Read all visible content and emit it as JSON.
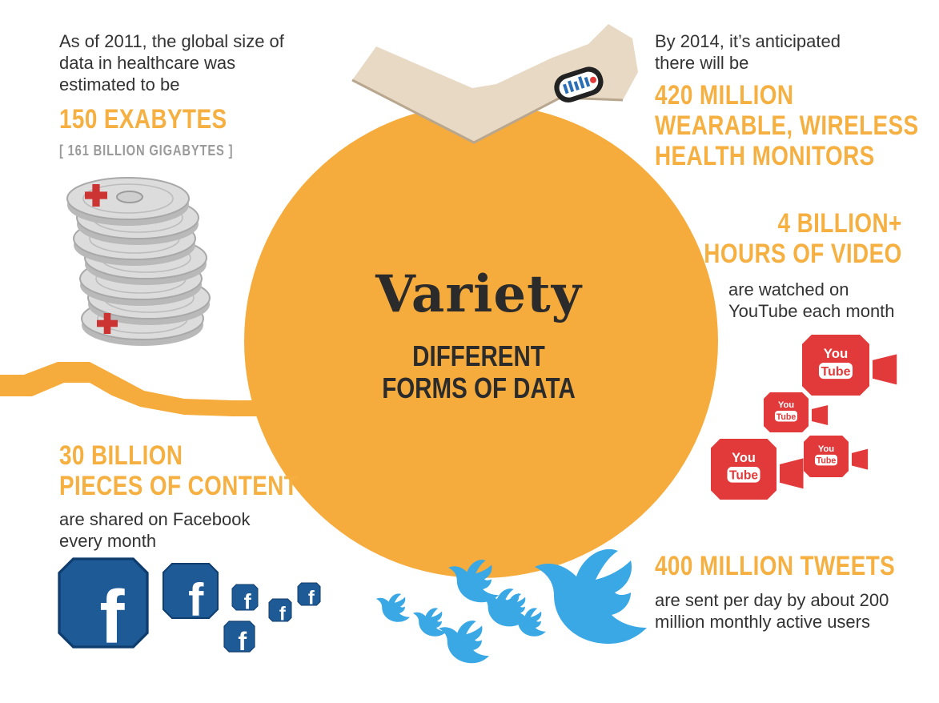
{
  "colors": {
    "accent_orange": "#f5b041",
    "circle": "#f6ac3d",
    "text_dark": "#2b2b2b",
    "text_gray": "#9a9a9a",
    "youtube_red": "#e23a3a",
    "facebook_blue": "#1e5a96",
    "twitter_blue": "#3aa8e4",
    "arm_skin": "#e8d9c4",
    "disc_gray": "#dcdcdc",
    "cross_red": "#cc3333"
  },
  "center": {
    "title": "Variety",
    "subtitle_line1": "DIFFERENT",
    "subtitle_line2": "FORMS OF DATA"
  },
  "healthcare": {
    "intro_line1": "As of 2011, the global size of",
    "intro_line2": "data in healthcare was",
    "intro_line3": "estimated to be",
    "headline": "150 EXABYTES",
    "note": "[ 161 BILLION GIGABYTES ]",
    "icon": "medical-disc-stack-icon"
  },
  "wearables": {
    "intro_line1": "By 2014, it’s anticipated",
    "intro_line2": "there will be",
    "headline_line1": "420 MILLION",
    "headline_line2": "WEARABLE, WIRELESS",
    "headline_line3": "HEALTH MONITORS",
    "icon": "arm-with-wearable-monitor-icon"
  },
  "youtube": {
    "headline_line1": "4 BILLION+",
    "headline_line2": "HOURS OF VIDEO",
    "body_line1": "are watched on",
    "body_line2": "YouTube each month",
    "logo_you": "You",
    "logo_tube": "Tube",
    "icon": "youtube-camera-icon"
  },
  "facebook": {
    "headline_line1": "30 BILLION",
    "headline_line2": "PIECES OF CONTENT",
    "body_line1": "are shared on Facebook",
    "body_line2": "every month",
    "logo_letter": "f",
    "icon": "facebook-logo-icon"
  },
  "twitter": {
    "headline": "400 MILLION TWEETS",
    "body_line1": "are sent per day by about 200",
    "body_line2": "million monthly active users",
    "icon": "twitter-bird-icon"
  }
}
